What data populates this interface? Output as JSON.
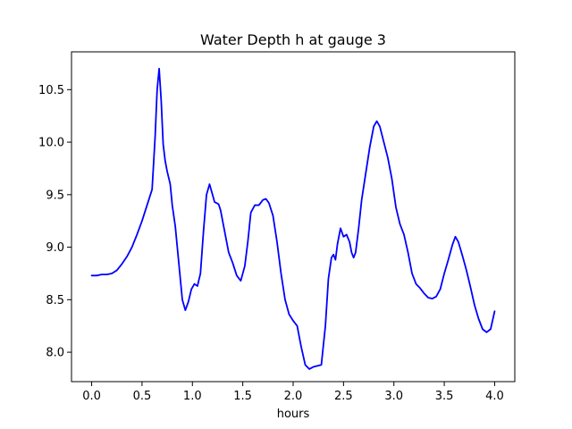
{
  "chart_data": {
    "type": "line",
    "title": "Water Depth h at gauge 3",
    "xlabel": "hours",
    "ylabel": "",
    "xlim": [
      -0.2,
      4.2
    ],
    "ylim": [
      7.72,
      10.86
    ],
    "xticks": [
      0.0,
      0.5,
      1.0,
      1.5,
      2.0,
      2.5,
      3.0,
      3.5,
      4.0
    ],
    "xtick_labels": [
      "0.0",
      "0.5",
      "1.0",
      "1.5",
      "2.0",
      "2.5",
      "3.0",
      "3.5",
      "4.0"
    ],
    "yticks": [
      8.0,
      8.5,
      9.0,
      9.5,
      10.0,
      10.5
    ],
    "ytick_labels": [
      "8.0",
      "8.5",
      "9.0",
      "9.5",
      "10.0",
      "10.5"
    ],
    "grid": false,
    "series": [
      {
        "color": "#0000ff",
        "x": [
          0.0,
          0.05,
          0.1,
          0.15,
          0.2,
          0.25,
          0.3,
          0.35,
          0.4,
          0.45,
          0.5,
          0.55,
          0.6,
          0.63,
          0.65,
          0.67,
          0.69,
          0.71,
          0.73,
          0.75,
          0.78,
          0.8,
          0.83,
          0.86,
          0.9,
          0.93,
          0.96,
          0.99,
          1.02,
          1.05,
          1.08,
          1.11,
          1.14,
          1.17,
          1.2,
          1.22,
          1.24,
          1.26,
          1.28,
          1.32,
          1.36,
          1.4,
          1.44,
          1.48,
          1.52,
          1.55,
          1.58,
          1.62,
          1.66,
          1.7,
          1.73,
          1.76,
          1.8,
          1.84,
          1.88,
          1.92,
          1.96,
          2.0,
          2.04,
          2.08,
          2.12,
          2.16,
          2.2,
          2.24,
          2.28,
          2.32,
          2.35,
          2.38,
          2.4,
          2.42,
          2.44,
          2.47,
          2.5,
          2.53,
          2.56,
          2.58,
          2.6,
          2.62,
          2.65,
          2.68,
          2.72,
          2.76,
          2.8,
          2.83,
          2.86,
          2.9,
          2.94,
          2.98,
          3.02,
          3.06,
          3.1,
          3.14,
          3.18,
          3.22,
          3.26,
          3.3,
          3.34,
          3.38,
          3.42,
          3.46,
          3.5,
          3.54,
          3.58,
          3.61,
          3.64,
          3.68,
          3.72,
          3.76,
          3.8,
          3.84,
          3.88,
          3.92,
          3.96,
          4.0
        ],
        "y": [
          8.73,
          8.73,
          8.74,
          8.74,
          8.75,
          8.78,
          8.84,
          8.91,
          9.0,
          9.12,
          9.25,
          9.4,
          9.55,
          10.05,
          10.5,
          10.7,
          10.4,
          9.98,
          9.82,
          9.72,
          9.6,
          9.4,
          9.2,
          8.9,
          8.5,
          8.4,
          8.48,
          8.6,
          8.65,
          8.63,
          8.75,
          9.15,
          9.5,
          9.6,
          9.5,
          9.43,
          9.42,
          9.41,
          9.35,
          9.15,
          8.95,
          8.85,
          8.73,
          8.68,
          8.82,
          9.05,
          9.33,
          9.4,
          9.4,
          9.45,
          9.46,
          9.42,
          9.3,
          9.05,
          8.75,
          8.5,
          8.36,
          8.3,
          8.25,
          8.05,
          7.88,
          7.84,
          7.86,
          7.87,
          7.88,
          8.25,
          8.7,
          8.9,
          8.93,
          8.88,
          9.03,
          9.18,
          9.1,
          9.12,
          9.05,
          8.95,
          8.9,
          8.95,
          9.18,
          9.45,
          9.7,
          9.95,
          10.15,
          10.2,
          10.15,
          10.0,
          9.85,
          9.65,
          9.38,
          9.22,
          9.12,
          8.95,
          8.75,
          8.65,
          8.61,
          8.56,
          8.52,
          8.51,
          8.53,
          8.6,
          8.75,
          8.88,
          9.02,
          9.1,
          9.05,
          8.92,
          8.78,
          8.62,
          8.45,
          8.32,
          8.22,
          8.19,
          8.22,
          8.39
        ]
      }
    ]
  }
}
